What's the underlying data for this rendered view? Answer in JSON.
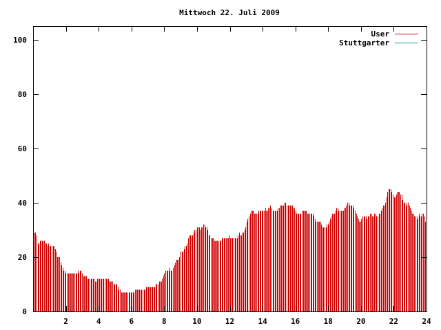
{
  "chart_data": {
    "type": "bar",
    "title": "Mittwoch 22. Juli 2009",
    "xlabel": "",
    "ylabel": "",
    "xlim": [
      0,
      24
    ],
    "ylim": [
      0,
      105
    ],
    "xticks": [
      2,
      4,
      6,
      8,
      10,
      12,
      14,
      16,
      18,
      20,
      22,
      24
    ],
    "yticks": [
      0,
      20,
      40,
      60,
      80,
      100
    ],
    "grid": false,
    "legend_position": "top-right",
    "series": [
      {
        "name": "User",
        "color": "#d00000",
        "values": [
          29,
          29,
          28,
          25,
          25,
          26,
          26,
          26,
          26,
          26,
          25,
          25,
          24,
          25,
          24,
          24,
          24,
          24,
          24,
          23,
          22,
          20,
          20,
          20,
          18,
          17,
          16,
          15,
          15,
          14,
          14,
          14,
          14,
          14,
          14,
          14,
          14,
          14,
          14,
          14,
          15,
          14,
          15,
          15,
          14,
          13,
          13,
          13,
          13,
          12,
          12,
          12,
          12,
          12,
          12,
          12,
          11,
          11,
          12,
          12,
          12,
          12,
          12,
          12,
          12,
          12,
          12,
          12,
          12,
          11,
          11,
          11,
          11,
          10,
          10,
          10,
          10,
          9,
          8,
          8,
          7,
          7,
          7,
          7,
          7,
          7,
          7,
          7,
          7,
          7,
          7,
          7,
          7,
          8,
          8,
          8,
          8,
          8,
          8,
          8,
          8,
          8,
          8,
          9,
          9,
          9,
          9,
          9,
          9,
          9,
          9,
          9,
          10,
          10,
          10,
          11,
          11,
          11,
          12,
          13,
          14,
          15,
          15,
          15,
          15,
          16,
          15,
          15,
          16,
          17,
          18,
          19,
          19,
          19,
          20,
          22,
          22,
          22,
          23,
          24,
          24,
          25,
          27,
          28,
          28,
          28,
          28,
          29,
          30,
          30,
          31,
          31,
          31,
          30,
          31,
          31,
          32,
          32,
          31,
          31,
          30,
          28,
          28,
          27,
          27,
          27,
          26,
          26,
          26,
          26,
          26,
          26,
          26,
          27,
          27,
          27,
          27,
          27,
          27,
          27,
          28,
          27,
          27,
          27,
          27,
          27,
          27,
          27,
          28,
          29,
          28,
          28,
          29,
          29,
          30,
          31,
          33,
          34,
          35,
          36,
          37,
          37,
          37,
          36,
          36,
          36,
          36,
          37,
          37,
          37,
          37,
          37,
          37,
          38,
          37,
          37,
          38,
          38,
          39,
          38,
          37,
          37,
          37,
          37,
          37,
          38,
          38,
          39,
          39,
          39,
          39,
          40,
          40,
          39,
          39,
          39,
          39,
          39,
          39,
          38,
          38,
          37,
          36,
          36,
          36,
          36,
          36,
          37,
          37,
          37,
          37,
          37,
          36,
          36,
          36,
          36,
          36,
          36,
          35,
          34,
          33,
          33,
          33,
          33,
          33,
          32,
          31,
          31,
          31,
          31,
          32,
          32,
          33,
          34,
          35,
          36,
          36,
          36,
          37,
          38,
          38,
          37,
          37,
          37,
          37,
          37,
          38,
          38,
          39,
          40,
          40,
          39,
          39,
          39,
          39,
          38,
          37,
          36,
          35,
          34,
          33,
          33,
          34,
          35,
          35,
          35,
          35,
          34,
          35,
          35,
          36,
          36,
          35,
          35,
          36,
          36,
          35,
          35,
          36,
          36,
          37,
          38,
          39,
          39,
          40,
          42,
          44,
          45,
          45,
          45,
          44,
          43,
          42,
          42,
          43,
          44,
          44,
          44,
          43,
          43,
          41,
          40,
          40,
          39,
          40,
          40,
          39,
          38,
          37,
          36,
          36,
          35,
          35,
          34,
          35,
          36,
          35,
          35,
          36,
          36,
          35,
          33
        ]
      },
      {
        "name": "Stuttgarter",
        "color": "#00a0a0",
        "values": []
      }
    ]
  }
}
